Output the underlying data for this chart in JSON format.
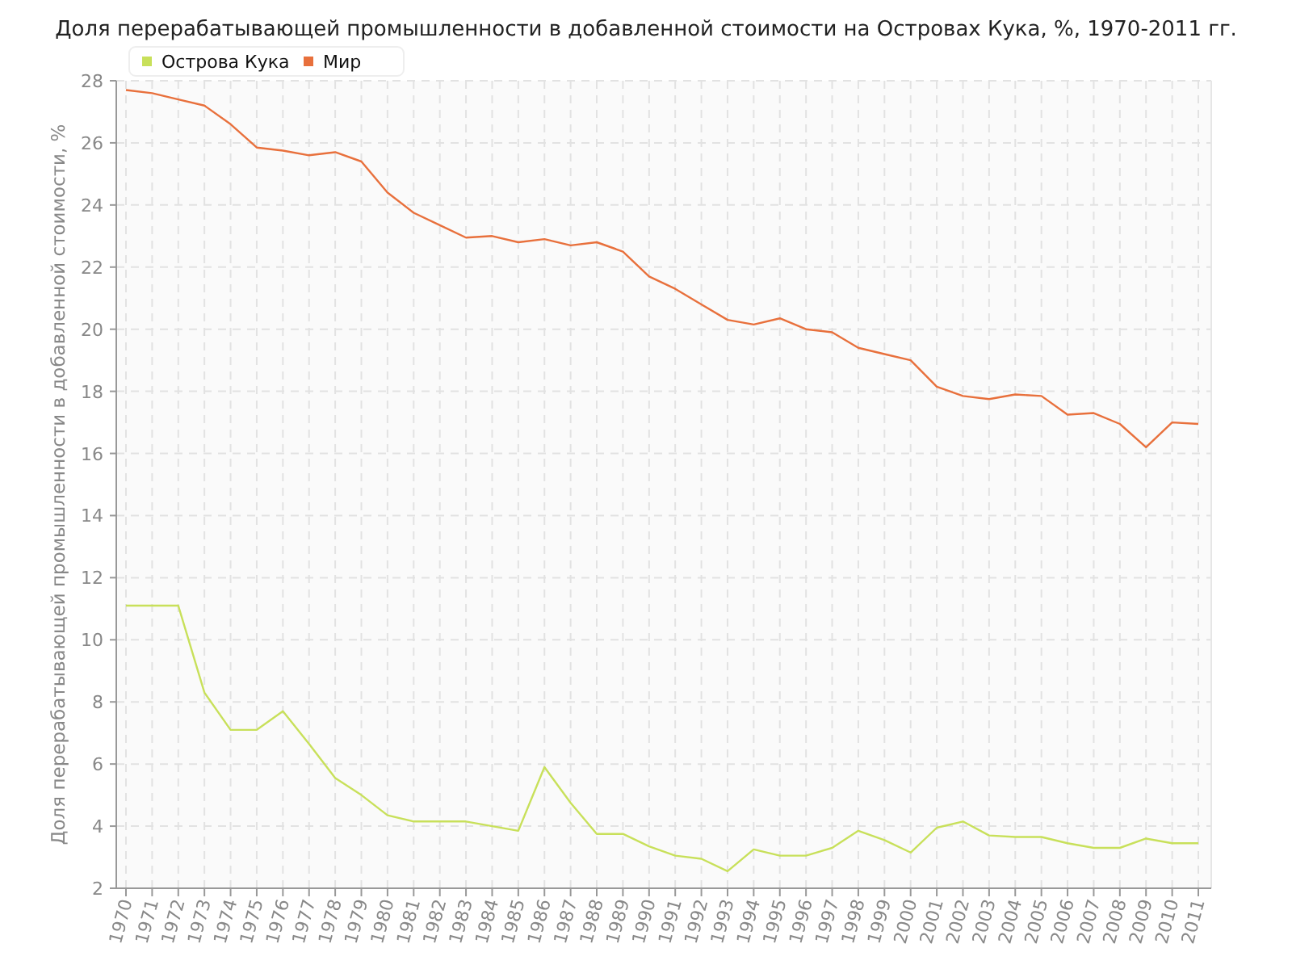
{
  "chart_data": {
    "type": "line",
    "title": "Доля перерабатывающей промышленности в добавленной стоимости на Островах Кука, %, 1970-2011 гг.",
    "ylabel": "Доля перерабатывающей промышленности в добавленной стоимости, %",
    "categories": [
      "1970",
      "1971",
      "1972",
      "1973",
      "1974",
      "1975",
      "1976",
      "1977",
      "1978",
      "1979",
      "1980",
      "1981",
      "1982",
      "1983",
      "1984",
      "1985",
      "1986",
      "1987",
      "1988",
      "1989",
      "1990",
      "1991",
      "1992",
      "1993",
      "1994",
      "1995",
      "1996",
      "1997",
      "1998",
      "1999",
      "2000",
      "2001",
      "2002",
      "2003",
      "2004",
      "2005",
      "2006",
      "2007",
      "2008",
      "2009",
      "2010",
      "2011"
    ],
    "series": [
      {
        "name": "Острова Кука",
        "color": "#c8e05a",
        "values": [
          11.1,
          11.1,
          11.1,
          8.3,
          7.1,
          7.1,
          7.7,
          6.65,
          5.55,
          5.0,
          4.35,
          4.15,
          4.15,
          4.15,
          4.0,
          3.85,
          5.9,
          4.75,
          3.75,
          3.75,
          3.35,
          3.05,
          2.95,
          2.55,
          3.25,
          3.05,
          3.05,
          3.3,
          3.85,
          3.55,
          3.15,
          3.95,
          4.15,
          3.7,
          3.65,
          3.65,
          3.45,
          3.3,
          3.3,
          3.6,
          3.45,
          3.45
        ]
      },
      {
        "name": "Мир",
        "color": "#e8703c",
        "values": [
          27.7,
          27.6,
          27.4,
          27.2,
          26.6,
          25.85,
          25.75,
          25.6,
          25.7,
          25.4,
          24.4,
          23.75,
          23.35,
          22.95,
          23.0,
          22.8,
          22.9,
          22.7,
          22.8,
          22.5,
          21.7,
          21.3,
          20.8,
          20.3,
          20.15,
          20.35,
          20.0,
          19.9,
          19.4,
          19.2,
          19.0,
          18.15,
          17.85,
          17.75,
          17.9,
          17.85,
          17.25,
          17.3,
          16.95,
          16.2,
          17.0,
          16.95
        ]
      }
    ],
    "ylim": [
      2,
      28
    ],
    "yticks": [
      2,
      4,
      6,
      8,
      10,
      12,
      14,
      16,
      18,
      20,
      22,
      24,
      26,
      28
    ],
    "grid": true,
    "legend": "top left",
    "marker": "none",
    "line_style": "solid"
  }
}
